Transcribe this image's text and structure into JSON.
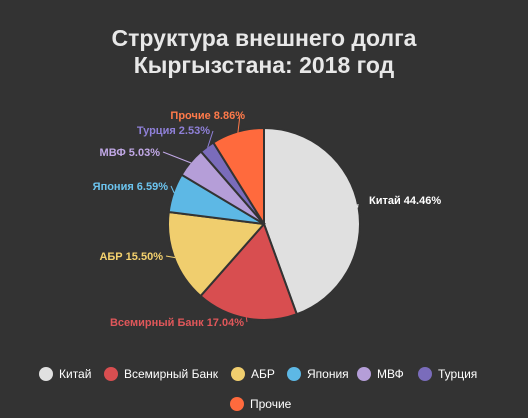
{
  "chart_data": {
    "type": "pie",
    "title": [
      "Структура внешнего долга",
      "Кыргызстана:  2018 год"
    ],
    "series": [
      {
        "name": "Китай",
        "value": 44.46,
        "label": "Китай 44.46%",
        "color": "#e0e0e0",
        "label_color": "#ffffff"
      },
      {
        "name": "Всемирный Банк",
        "value": 17.04,
        "label": "Всемирный Банк 17.04%",
        "color": "#d84e50",
        "label_color": "#e0575a"
      },
      {
        "name": "АБР",
        "value": 15.5,
        "label": "АБР 15.50%",
        "color": "#f0ce6e",
        "label_color": "#f5d26e"
      },
      {
        "name": "Япония",
        "value": 6.59,
        "label": "Япония 6.59%",
        "color": "#5db8e5",
        "label_color": "#6cc4ef"
      },
      {
        "name": "МВФ",
        "value": 5.03,
        "label": "МВФ 5.03%",
        "color": "#b59ed8",
        "label_color": "#c1a8e6"
      },
      {
        "name": "Турция",
        "value": 2.53,
        "label": "Турция 2.53%",
        "color": "#7a6cbb",
        "label_color": "#8f80d8"
      },
      {
        "name": "Прочие",
        "value": 8.86,
        "label": "Прочие 8.86%",
        "color": "#ff6a3d",
        "label_color": "#ff7a4a"
      }
    ],
    "legend": {
      "position": "bottom",
      "items": [
        "Китай",
        "Всемирный Банк",
        "АБР",
        "Япония",
        "МВФ",
        "Турция",
        "Прочие"
      ]
    }
  }
}
